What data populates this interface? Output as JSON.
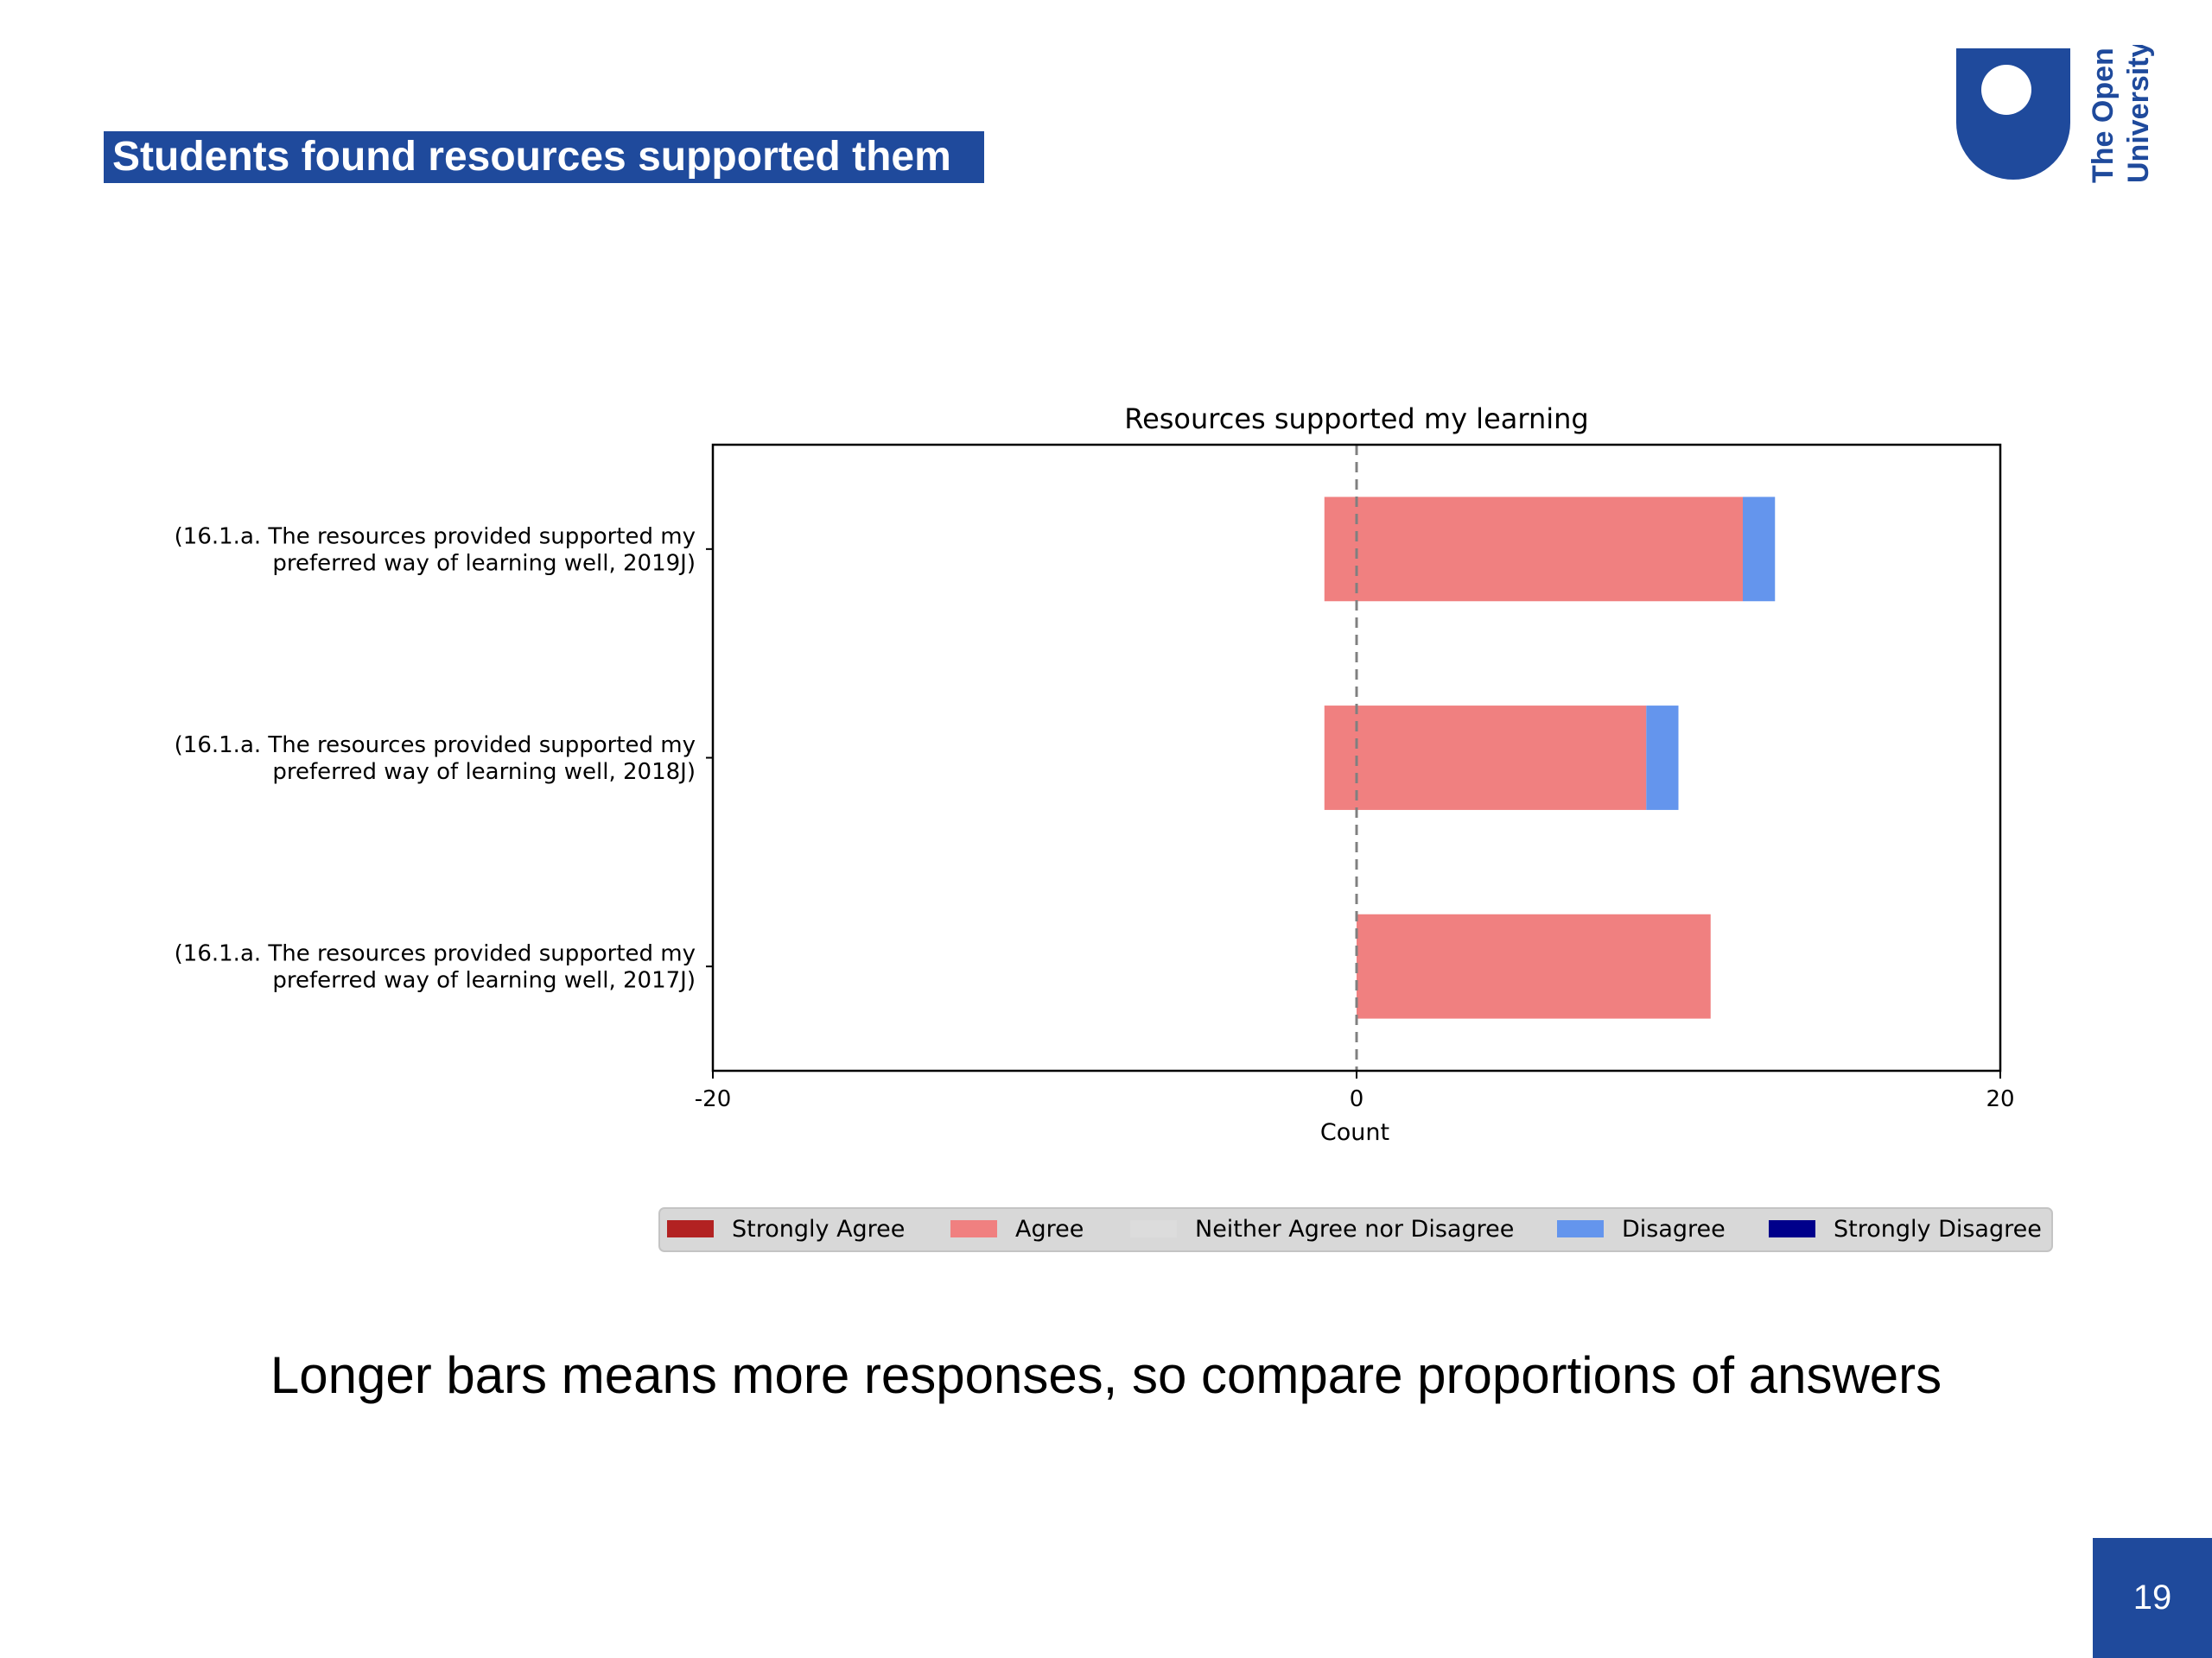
{
  "slide": {
    "title": "Students found resources supported them",
    "caption": "Longer bars means more responses, so compare proportions of answers",
    "page_number": "19",
    "logo_text": [
      "The Open",
      "University"
    ],
    "brand_color": "#1f4a9c"
  },
  "chart_data": {
    "type": "bar",
    "orientation": "horizontal",
    "stacked": "diverging",
    "title": "Resources supported my learning",
    "xlabel": "Count",
    "ylabel": "",
    "xlim": [
      -20,
      20
    ],
    "xticks": [
      "-20",
      "0",
      "20"
    ],
    "categories": [
      [
        "(16.1.a. The resources provided supported my",
        "preferred way of learning well, 2019J)"
      ],
      [
        "(16.1.a. The resources provided supported my",
        "preferred way of learning well, 2018J)"
      ],
      [
        "(16.1.a. The resources provided supported my",
        "preferred way of learning well, 2017J)"
      ]
    ],
    "series": [
      {
        "name": "Strongly Agree",
        "color": "#b22222",
        "values": [
          0,
          0,
          0
        ]
      },
      {
        "name": "Agree",
        "color": "#f08080",
        "values": [
          13,
          10,
          11
        ]
      },
      {
        "name": "Neither Agree nor Disagree",
        "color": "#dcdcdc",
        "values": [
          0,
          0,
          0
        ]
      },
      {
        "name": "Disagree",
        "color": "#6495ed",
        "values": [
          1,
          1,
          0
        ]
      },
      {
        "name": "Strongly Disagree",
        "color": "#00008b",
        "values": [
          0,
          0,
          0
        ]
      }
    ],
    "left_offset": [
      1,
      1,
      0
    ],
    "zero_line": "dashed",
    "grid": false,
    "legend_position": "bottom"
  }
}
